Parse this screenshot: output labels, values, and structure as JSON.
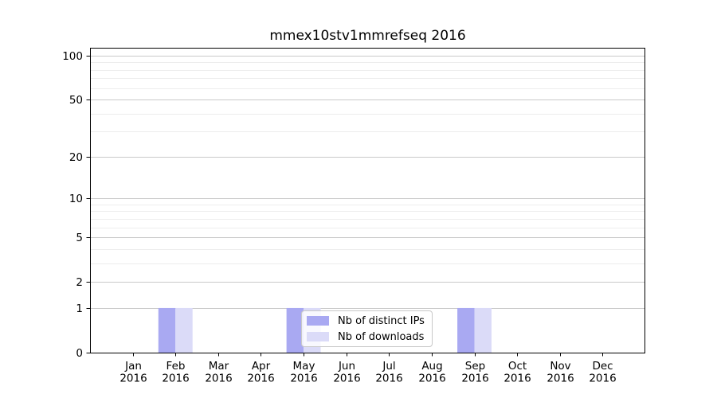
{
  "chart_data": {
    "type": "bar",
    "title": "mmex10stv1mmrefseq 2016",
    "categories": [
      "Jan\n2016",
      "Feb\n2016",
      "Mar\n2016",
      "Apr\n2016",
      "May\n2016",
      "Jun\n2016",
      "Jul\n2016",
      "Aug\n2016",
      "Sep\n2016",
      "Oct\n2016",
      "Nov\n2016",
      "Dec\n2016"
    ],
    "series": [
      {
        "name": "Nb of distinct IPs",
        "color": "#a9a9f2",
        "values": [
          0,
          1,
          0,
          0,
          1,
          0,
          0,
          0,
          1,
          0,
          0,
          0
        ]
      },
      {
        "name": "Nb of downloads",
        "color": "#dbdbf8",
        "values": [
          0,
          1,
          0,
          0,
          1,
          0,
          0,
          0,
          1,
          0,
          0,
          0
        ]
      }
    ],
    "xlabel": "",
    "ylabel": "",
    "yscale": "log1p",
    "ylim": [
      0,
      113
    ],
    "yticks": [
      100,
      50,
      20,
      10,
      5,
      2,
      1,
      0
    ],
    "minor_gridlines": [
      90,
      80,
      70,
      60,
      40,
      30,
      9,
      8,
      7,
      6,
      4,
      3
    ],
    "grid": "horizontal",
    "legend_position": "lower center",
    "colors": {
      "axis": "#000000",
      "grid_major": "#c9c9c9",
      "grid_minor": "#ededed",
      "background": "#ffffff"
    }
  }
}
